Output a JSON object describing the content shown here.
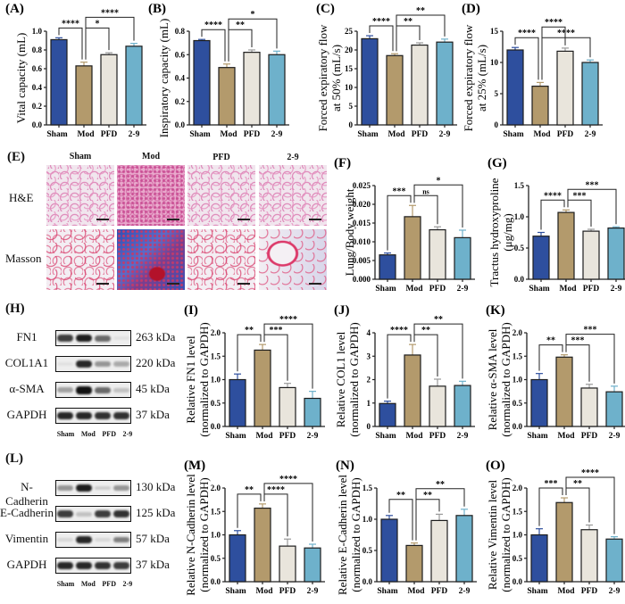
{
  "groups": [
    "Sham",
    "Mod",
    "PFD",
    "2-9"
  ],
  "colors": {
    "Sham": "#2e4f9e",
    "Mod": "#b39a6c",
    "PFD": "#e9e5dc",
    "2-9": "#6eb1cb",
    "edge": "#1d1d1d"
  },
  "histology": {
    "label": "(E)",
    "columns": [
      "Sham",
      "Mod",
      "PFD",
      "2-9"
    ],
    "rows": [
      "H&E",
      "Masson"
    ]
  },
  "blot_h": {
    "label": "(H)",
    "lanes": [
      "Sham",
      "Mod",
      "PFD",
      "2-9"
    ],
    "rows": [
      {
        "name": "FN1",
        "kda": "263 kDa",
        "intensity": [
          0.8,
          0.95,
          0.6,
          0.05
        ]
      },
      {
        "name": "COL1A1",
        "kda": "220 kDa",
        "intensity": [
          0.02,
          0.9,
          0.4,
          0.3
        ]
      },
      {
        "name": "α-SMA",
        "kda": "45 kDa",
        "intensity": [
          0.35,
          1.0,
          0.6,
          0.2
        ]
      },
      {
        "name": "GAPDH",
        "kda": "37 kDa",
        "intensity": [
          0.9,
          0.9,
          0.85,
          0.85
        ]
      }
    ]
  },
  "blot_l": {
    "label": "(L)",
    "lanes": [
      "Sham",
      "Mod",
      "PFD",
      "2-9"
    ],
    "rows": [
      {
        "name": "N-Cadherin",
        "kda": "130 kDa",
        "intensity": [
          0.4,
          0.95,
          0.15,
          0.4
        ]
      },
      {
        "name": "E-Cadherin",
        "kda": "125 kDa",
        "intensity": [
          0.8,
          0.2,
          0.8,
          0.85
        ]
      },
      {
        "name": "Vimentin",
        "kda": "57 kDa",
        "intensity": [
          0.1,
          0.9,
          0.1,
          0.5
        ]
      },
      {
        "name": "GAPDH",
        "kda": "37 kDa",
        "intensity": [
          0.9,
          0.9,
          0.85,
          0.8
        ]
      }
    ]
  },
  "chart_data": [
    {
      "id": "A",
      "label": "(A)",
      "type": "bar",
      "categories": [
        "Sham",
        "Mod",
        "PFD",
        "2-9"
      ],
      "values": [
        0.91,
        0.63,
        0.75,
        0.84
      ],
      "errors": [
        0.02,
        0.04,
        0.02,
        0.03
      ],
      "ylabel": [
        "Vital capacity (mL)"
      ],
      "ylim": [
        0,
        1.0
      ],
      "ticks": [
        "0.0",
        "0.2",
        "0.4",
        "0.6",
        "0.8",
        "1.0"
      ],
      "significance": [
        {
          "a": 0,
          "b": 1,
          "level": 0,
          "text": "****"
        },
        {
          "a": 1,
          "b": 2,
          "level": 0,
          "text": "*"
        },
        {
          "a": 1,
          "b": 3,
          "level": 1,
          "text": "****"
        }
      ]
    },
    {
      "id": "B",
      "label": "(B)",
      "type": "bar",
      "categories": [
        "Sham",
        "Mod",
        "PFD",
        "2-9"
      ],
      "values": [
        0.72,
        0.49,
        0.62,
        0.6
      ],
      "errors": [
        0.01,
        0.03,
        0.02,
        0.03
      ],
      "ylabel": [
        "Inspiratory capacity (mL)"
      ],
      "ylim": [
        0,
        0.8
      ],
      "ticks": [
        "0.0",
        "0.2",
        "0.4",
        "0.6",
        "0.8"
      ],
      "significance": [
        {
          "a": 0,
          "b": 1,
          "level": 0,
          "text": "****"
        },
        {
          "a": 1,
          "b": 2,
          "level": 0,
          "text": "**"
        },
        {
          "a": 1,
          "b": 3,
          "level": 1,
          "text": "*"
        }
      ]
    },
    {
      "id": "C",
      "label": "(C)",
      "type": "bar",
      "categories": [
        "Sham",
        "Mod",
        "PFD",
        "2-9"
      ],
      "values": [
        23.0,
        18.5,
        21.3,
        22.1
      ],
      "errors": [
        0.8,
        0.5,
        0.6,
        0.8
      ],
      "ylabel": [
        "Forced expiratory flow",
        "at 50% (mL/s)"
      ],
      "ylim": [
        0,
        25
      ],
      "ticks": [
        "0",
        "5",
        "10",
        "15",
        "20",
        "25"
      ],
      "significance": [
        {
          "a": 0,
          "b": 1,
          "level": 0,
          "text": "****"
        },
        {
          "a": 1,
          "b": 2,
          "level": 0,
          "text": "**"
        },
        {
          "a": 1,
          "b": 3,
          "level": 1,
          "text": "**"
        }
      ]
    },
    {
      "id": "D",
      "label": "(D)",
      "type": "bar",
      "categories": [
        "Sham",
        "Mod",
        "PFD",
        "2-9"
      ],
      "values": [
        12.0,
        6.2,
        11.8,
        10.0
      ],
      "errors": [
        0.4,
        0.6,
        0.5,
        0.4
      ],
      "ylabel": [
        "Forced expiratory flow",
        "at 25% (mL/s)"
      ],
      "ylim": [
        0,
        15
      ],
      "ticks": [
        "0",
        "5",
        "10",
        "15"
      ],
      "significance": [
        {
          "a": 0,
          "b": 1,
          "level": 0,
          "text": "****"
        },
        {
          "a": 1,
          "b": 3,
          "level": 0,
          "text": "****"
        },
        {
          "a": 1,
          "b": 2,
          "level": 1,
          "text": "****"
        }
      ]
    },
    {
      "id": "F",
      "label": "(F)",
      "type": "bar",
      "categories": [
        "Sham",
        "Mod",
        "PFD",
        "2-9"
      ],
      "values": [
        0.0065,
        0.0167,
        0.0132,
        0.0111
      ],
      "errors": [
        0.0005,
        0.003,
        0.0008,
        0.002
      ],
      "ylabel": [
        "Lung/Body weight"
      ],
      "ylim": [
        0,
        0.025
      ],
      "ticks": [
        "0.000",
        "0.005",
        "0.010",
        "0.015",
        "0.020",
        "0.025"
      ],
      "significance": [
        {
          "a": 0,
          "b": 1,
          "level": 0,
          "text": "***"
        },
        {
          "a": 1,
          "b": 2,
          "level": 0,
          "text": "ns"
        },
        {
          "a": 1,
          "b": 3,
          "level": 1,
          "text": "*"
        }
      ]
    },
    {
      "id": "G",
      "label": "(G)",
      "type": "bar",
      "categories": [
        "Sham",
        "Mod",
        "PFD",
        "2-9"
      ],
      "values": [
        0.69,
        1.07,
        0.77,
        0.82
      ],
      "errors": [
        0.06,
        0.04,
        0.03,
        0.02
      ],
      "ylabel": [
        "Tractus hydroxyproline",
        "(μg/mg)"
      ],
      "ylim": [
        0,
        1.5
      ],
      "ticks": [
        "0.0",
        "0.5",
        "1.0",
        "1.5"
      ],
      "significance": [
        {
          "a": 0,
          "b": 1,
          "level": 0,
          "text": "****"
        },
        {
          "a": 1,
          "b": 2,
          "level": 0,
          "text": "***"
        },
        {
          "a": 1,
          "b": 3,
          "level": 1,
          "text": "***"
        }
      ]
    },
    {
      "id": "I",
      "label": "(I)",
      "type": "bar",
      "categories": [
        "Sham",
        "Mod",
        "PFD",
        "2-9"
      ],
      "values": [
        1.0,
        1.63,
        0.83,
        0.6
      ],
      "errors": [
        0.12,
        0.12,
        0.09,
        0.15
      ],
      "ylabel": [
        "Relative FN1  level",
        "(normalized to GAPDH)"
      ],
      "ylim": [
        0,
        2.0
      ],
      "ticks": [
        "0.0",
        "0.5",
        "1.0",
        "1.5",
        "2.0"
      ],
      "significance": [
        {
          "a": 0,
          "b": 1,
          "level": 0,
          "text": "**"
        },
        {
          "a": 1,
          "b": 2,
          "level": 0,
          "text": "***"
        },
        {
          "a": 1,
          "b": 3,
          "level": 1,
          "text": "****"
        }
      ]
    },
    {
      "id": "J",
      "label": "(J)",
      "type": "bar",
      "categories": [
        "Sham",
        "Mod",
        "PFD",
        "2-9"
      ],
      "values": [
        0.98,
        3.05,
        1.72,
        1.75
      ],
      "errors": [
        0.1,
        0.45,
        0.3,
        0.18
      ],
      "ylabel": [
        "Relative COL1  level",
        "(normalized to GAPDH)"
      ],
      "ylim": [
        0,
        4
      ],
      "ticks": [
        "0",
        "1",
        "2",
        "3",
        "4"
      ],
      "significance": [
        {
          "a": 0,
          "b": 1,
          "level": 0,
          "text": "****"
        },
        {
          "a": 1,
          "b": 2,
          "level": 0,
          "text": "**"
        },
        {
          "a": 1,
          "b": 3,
          "level": 1,
          "text": "**"
        }
      ]
    },
    {
      "id": "K",
      "label": "(K)",
      "type": "bar",
      "categories": [
        "Sham",
        "Mod",
        "PFD",
        "2-9"
      ],
      "values": [
        1.0,
        1.48,
        0.82,
        0.74
      ],
      "errors": [
        0.13,
        0.05,
        0.08,
        0.12
      ],
      "ylabel": [
        "Relative α-SMA level",
        "(normalized to GAPDH)"
      ],
      "ylim": [
        0,
        2.0
      ],
      "ticks": [
        "0.0",
        "0.5",
        "1.0",
        "1.5",
        "2.0"
      ],
      "significance": [
        {
          "a": 0,
          "b": 1,
          "level": 0,
          "text": "**"
        },
        {
          "a": 1,
          "b": 2,
          "level": 0,
          "text": "***"
        },
        {
          "a": 1,
          "b": 3,
          "level": 1,
          "text": "***"
        }
      ]
    },
    {
      "id": "M",
      "label": "(M)",
      "type": "bar",
      "categories": [
        "Sham",
        "Mod",
        "PFD",
        "2-9"
      ],
      "values": [
        1.0,
        1.57,
        0.76,
        0.72
      ],
      "errors": [
        0.09,
        0.09,
        0.15,
        0.08
      ],
      "ylabel": [
        "Relative  N-Cadherin  level",
        "(normalized to GAPDH)"
      ],
      "ylim": [
        0,
        2.0
      ],
      "ticks": [
        "0.0",
        "0.5",
        "1.0",
        "1.5",
        "2.0"
      ],
      "significance": [
        {
          "a": 0,
          "b": 1,
          "level": 0,
          "text": "**"
        },
        {
          "a": 1,
          "b": 2,
          "level": 0,
          "text": "****"
        },
        {
          "a": 1,
          "b": 3,
          "level": 1,
          "text": "****"
        }
      ]
    },
    {
      "id": "N",
      "label": "(N)",
      "type": "bar",
      "categories": [
        "Sham",
        "Mod",
        "PFD",
        "2-9"
      ],
      "values": [
        1.0,
        0.58,
        0.98,
        1.06
      ],
      "errors": [
        0.06,
        0.04,
        0.1,
        0.1
      ],
      "ylabel": [
        "Relative  E-Cadherin  level",
        "(normalized to GAPDH)"
      ],
      "ylim": [
        0,
        1.5
      ],
      "ticks": [
        "0.0",
        "0.5",
        "1.0",
        "1.5"
      ],
      "significance": [
        {
          "a": 0,
          "b": 1,
          "level": 0,
          "text": "**"
        },
        {
          "a": 1,
          "b": 2,
          "level": 0,
          "text": "**"
        },
        {
          "a": 1,
          "b": 3,
          "level": 1,
          "text": "**"
        }
      ]
    },
    {
      "id": "O",
      "label": "(O)",
      "type": "bar",
      "categories": [
        "Sham",
        "Mod",
        "PFD",
        "2-9"
      ],
      "values": [
        1.0,
        1.69,
        1.11,
        0.91
      ],
      "errors": [
        0.13,
        0.1,
        0.1,
        0.05
      ],
      "ylabel": [
        "Relative  Vimentin  level",
        "(normalized to GAPDH)"
      ],
      "ylim": [
        0,
        2.0
      ],
      "ticks": [
        "0.0",
        "0.5",
        "1.0",
        "1.5",
        "2.0"
      ],
      "significance": [
        {
          "a": 0,
          "b": 1,
          "level": 0,
          "text": "***"
        },
        {
          "a": 1,
          "b": 2,
          "level": 0,
          "text": "**"
        },
        {
          "a": 1,
          "b": 3,
          "level": 1,
          "text": "****"
        }
      ]
    }
  ]
}
